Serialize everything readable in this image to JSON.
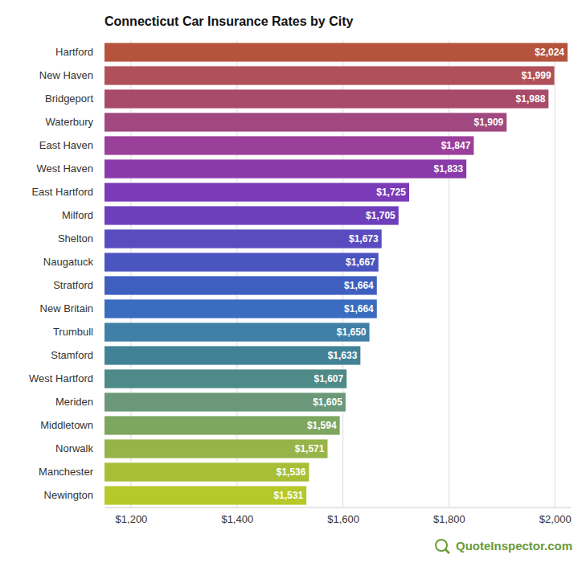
{
  "chart_data": {
    "type": "bar",
    "title": "Connecticut Car Insurance Rates by City",
    "orientation": "horizontal",
    "categories": [
      "Hartford",
      "New Haven",
      "Bridgeport",
      "Waterbury",
      "East Haven",
      "West Haven",
      "East Hartford",
      "Milford",
      "Shelton",
      "Naugatuck",
      "Stratford",
      "New Britain",
      "Trumbull",
      "Stamford",
      "West Hartford",
      "Meriden",
      "Middletown",
      "Norwalk",
      "Manchester",
      "Newington"
    ],
    "values": [
      2024,
      1999,
      1988,
      1909,
      1847,
      1833,
      1725,
      1705,
      1673,
      1667,
      1664,
      1664,
      1650,
      1633,
      1607,
      1605,
      1594,
      1571,
      1536,
      1531
    ],
    "value_labels": [
      "$2,024",
      "$1,999",
      "$1,988",
      "$1,909",
      "$1,847",
      "$1,833",
      "$1,725",
      "$1,705",
      "$1,673",
      "$1,667",
      "$1,664",
      "$1,664",
      "$1,650",
      "$1,633",
      "$1,607",
      "$1,605",
      "$1,594",
      "$1,571",
      "$1,536",
      "$1,531"
    ],
    "colors": [
      "#b5533c",
      "#b0505a",
      "#a84a6a",
      "#a0487f",
      "#9a3f9a",
      "#8a3aaa",
      "#7b3ab8",
      "#6d3fbb",
      "#5a4cbf",
      "#4b55bf",
      "#3f5fbf",
      "#3a6cbf",
      "#3f7fa8",
      "#428296",
      "#4e8a87",
      "#6a9878",
      "#7da65e",
      "#96b44a",
      "#a8bf35",
      "#b6c82a"
    ],
    "xlim": [
      1150,
      2030
    ],
    "xticks": [
      {
        "value": 1200,
        "label": "$1,200"
      },
      {
        "value": 1400,
        "label": "$1,400"
      },
      {
        "value": 1600,
        "label": "$1,600"
      },
      {
        "value": 1800,
        "label": "$1,800"
      },
      {
        "value": 2000,
        "label": "$2,000"
      }
    ],
    "grid": true,
    "data_labels": true,
    "annotation": "QuoteInspector.com"
  }
}
